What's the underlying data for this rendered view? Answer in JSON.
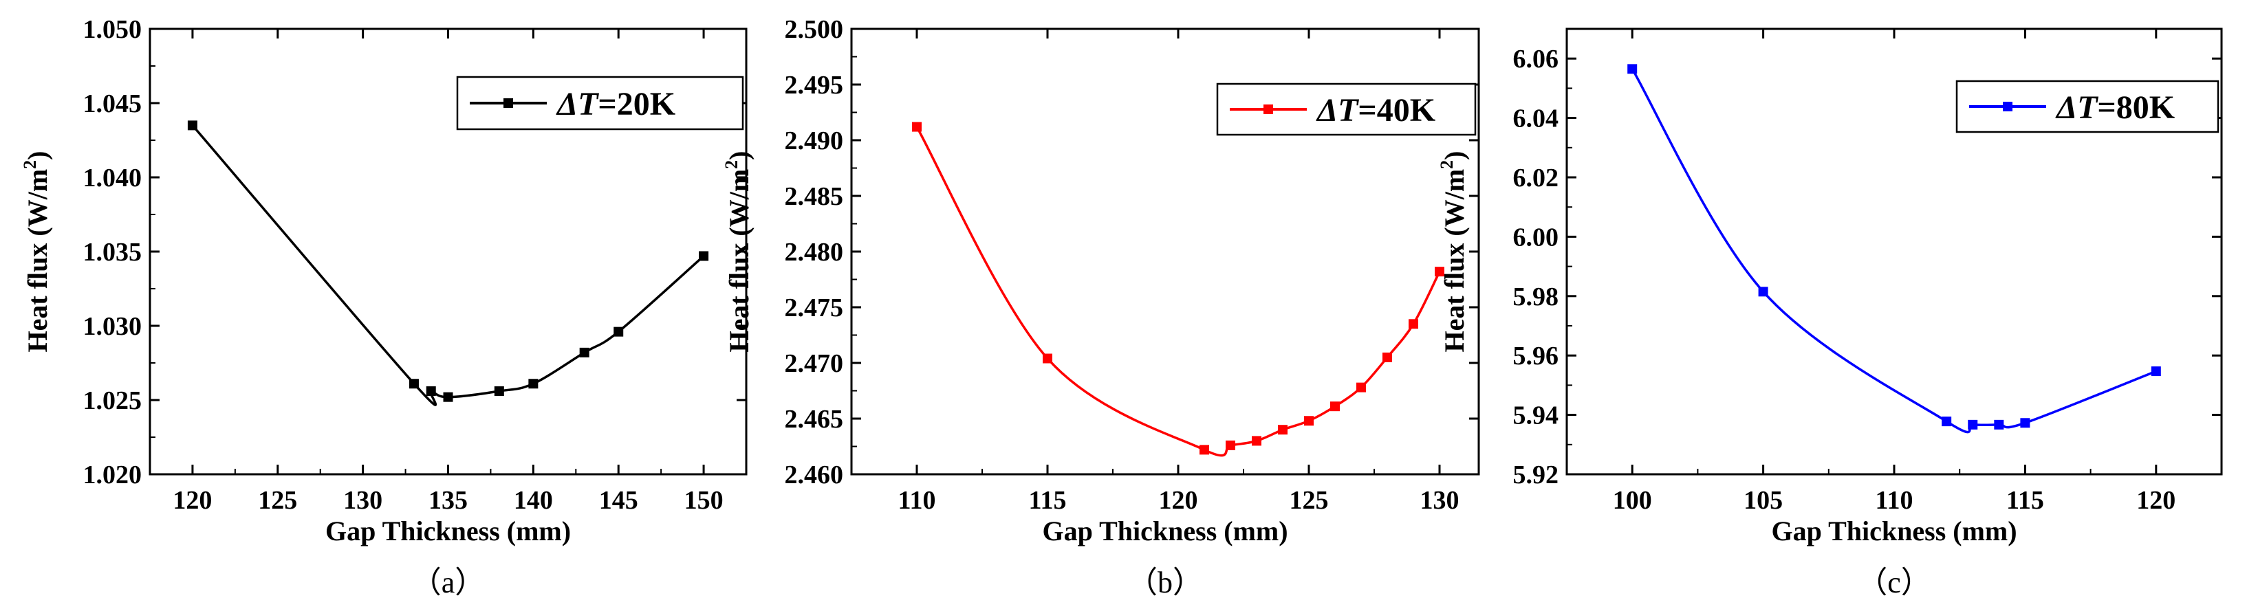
{
  "chart_data": [
    {
      "type": "line",
      "panel_label": "（a）",
      "xlabel": "Gap Thickness (mm)",
      "ylabel": "Heat flux (W/m",
      "ylabel_sup": "2",
      "ylabel_close": ")",
      "xlim": [
        117.5,
        152.5
      ],
      "ylim": [
        1.02,
        1.05
      ],
      "xticks": [
        120,
        125,
        130,
        135,
        140,
        145,
        150
      ],
      "yticks": [
        1.02,
        1.025,
        1.03,
        1.035,
        1.04,
        1.045,
        1.05
      ],
      "xtick_labels": [
        "120",
        "125",
        "130",
        "135",
        "140",
        "145",
        "150"
      ],
      "ytick_labels": [
        "1.020",
        "1.025",
        "1.030",
        "1.035",
        "1.040",
        "1.045",
        "1.050"
      ],
      "legend_location": "top-right",
      "series": [
        {
          "name": "ΔT=20K",
          "legend_italic": "ΔT",
          "legend_rest": "=20K",
          "color": "#000000",
          "marker": "square",
          "x": [
            120,
            133,
            134,
            135,
            138,
            140,
            143,
            145,
            150
          ],
          "values": [
            1.0435,
            1.0261,
            1.0256,
            1.0252,
            1.0256,
            1.0261,
            1.0282,
            1.0296,
            1.0347
          ]
        }
      ]
    },
    {
      "type": "line",
      "panel_label": "（b）",
      "xlabel": "Gap Thickness (mm)",
      "ylabel": "Heat flux (W/m",
      "ylabel_sup": "2",
      "ylabel_close": ")",
      "xlim": [
        107.5,
        131.5
      ],
      "ylim": [
        2.46,
        2.5
      ],
      "xticks": [
        110,
        115,
        120,
        125,
        130
      ],
      "yticks": [
        2.46,
        2.465,
        2.47,
        2.475,
        2.48,
        2.485,
        2.49,
        2.495,
        2.5
      ],
      "xtick_labels": [
        "110",
        "115",
        "120",
        "125",
        "130"
      ],
      "ytick_labels": [
        "2.460",
        "2.465",
        "2.470",
        "2.475",
        "2.480",
        "2.485",
        "2.490",
        "2.495",
        "2.500"
      ],
      "legend_location": "top-right",
      "series": [
        {
          "name": "ΔT=40K",
          "legend_italic": "ΔT",
          "legend_rest": "=40K",
          "color": "#ff0000",
          "marker": "square",
          "x": [
            110,
            115,
            121,
            122,
            123,
            124,
            125,
            126,
            127,
            128,
            129,
            130
          ],
          "values": [
            2.4912,
            2.4704,
            2.4622,
            2.4626,
            2.463,
            2.464,
            2.4648,
            2.4661,
            2.4678,
            2.4705,
            2.4735,
            2.4782
          ]
        }
      ]
    },
    {
      "type": "line",
      "panel_label": "（c）",
      "xlabel": "Gap Thickness (mm)",
      "ylabel": "Heat flux (W/m",
      "ylabel_sup": "2",
      "ylabel_close": ")",
      "xlim": [
        97.5,
        122.5
      ],
      "ylim": [
        5.92,
        6.07
      ],
      "xticks": [
        100,
        105,
        110,
        115,
        120
      ],
      "yticks": [
        5.92,
        5.94,
        5.96,
        5.98,
        6.0,
        6.02,
        6.04,
        6.06
      ],
      "xtick_labels": [
        "100",
        "105",
        "110",
        "115",
        "120"
      ],
      "ytick_labels": [
        "5.92",
        "5.94",
        "5.96",
        "5.98",
        "6.00",
        "6.02",
        "6.04",
        "6.06"
      ],
      "legend_location": "top-right",
      "series": [
        {
          "name": "ΔT=80K",
          "legend_italic": "ΔT",
          "legend_rest": "=80K",
          "color": "#0000ff",
          "marker": "square",
          "x": [
            100,
            105,
            112,
            113,
            114,
            115,
            120
          ],
          "values": [
            6.0565,
            5.9815,
            5.9378,
            5.9367,
            5.9367,
            5.9373,
            5.9547
          ]
        }
      ]
    }
  ]
}
